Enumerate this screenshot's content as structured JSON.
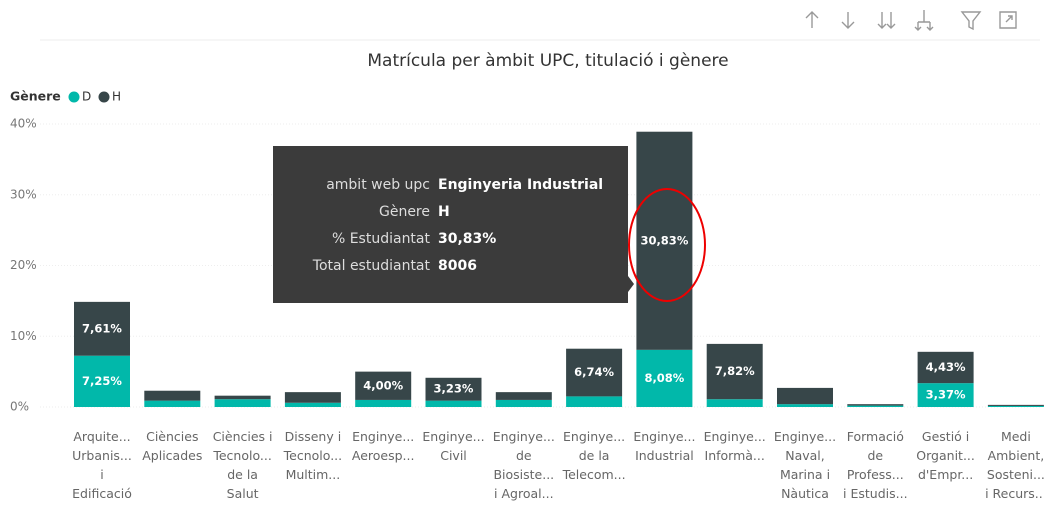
{
  "chart_data": {
    "type": "stacked_bar",
    "title": "Matrícula per àmbit UPC, titulació i gènere",
    "legend_title": "Gènere",
    "legend": "top-left",
    "grid": true,
    "categories": [
      "Arquite...\nUrbanis...\ni\nEdificació",
      "Ciències\nAplicades",
      "Ciències i\nTecnolo...\nde la\nSalut",
      "Disseny i\nTecnolo...\nMultim...",
      "Enginye...\nAeroesp...",
      "Enginye...\nCivil",
      "Enginye...\nde\nBiosiste...\ni Agroal...",
      "Enginye...\nde la\nTelecom...",
      "Enginye...\nIndustrial",
      "Enginye...\nInformà...",
      "Enginye...\nNaval,\nMarina i\nNàutica",
      "Formació\nde\nProfess...\ni Estudis...",
      "Gestió i\nOrganit...\nd'Empr...",
      "Medi\nAmbient,\nSosteni...\ni Recurs..."
    ],
    "series": [
      {
        "name": "D",
        "color": "#01b8aa",
        "values": [
          7.25,
          0.9,
          1.1,
          0.6,
          1.0,
          0.9,
          1.0,
          1.5,
          8.08,
          1.1,
          0.4,
          0.2,
          3.37,
          0.15
        ],
        "value_labels": [
          "7,25%",
          null,
          null,
          null,
          null,
          null,
          null,
          null,
          "8,08%",
          null,
          null,
          null,
          "3,37%",
          null
        ]
      },
      {
        "name": "H",
        "color": "#374649",
        "values": [
          7.61,
          1.4,
          0.5,
          1.5,
          4.0,
          3.23,
          1.1,
          6.74,
          30.83,
          7.82,
          2.3,
          0.2,
          4.43,
          0.15
        ],
        "value_labels": [
          "7,61%",
          null,
          null,
          null,
          "4,00%",
          "3,23%",
          null,
          "6,74%",
          "30,83%",
          "7,82%",
          null,
          null,
          "4,43%",
          null
        ]
      }
    ],
    "ylim": [
      0,
      40
    ],
    "yticks": [
      {
        "value": 0,
        "label": "0%"
      },
      {
        "value": 10,
        "label": "10%"
      },
      {
        "value": 20,
        "label": "20%"
      },
      {
        "value": 30,
        "label": "30%"
      },
      {
        "value": 40,
        "label": "40%"
      }
    ],
    "tooltip": [
      {
        "label": "ambit web upc",
        "value": "Enginyeria Industrial"
      },
      {
        "label": "Gènere",
        "value": "H"
      },
      {
        "label": "% Estudiantat",
        "value": "30,83%"
      },
      {
        "label": "Total estudiantat",
        "value": 8006
      }
    ]
  }
}
